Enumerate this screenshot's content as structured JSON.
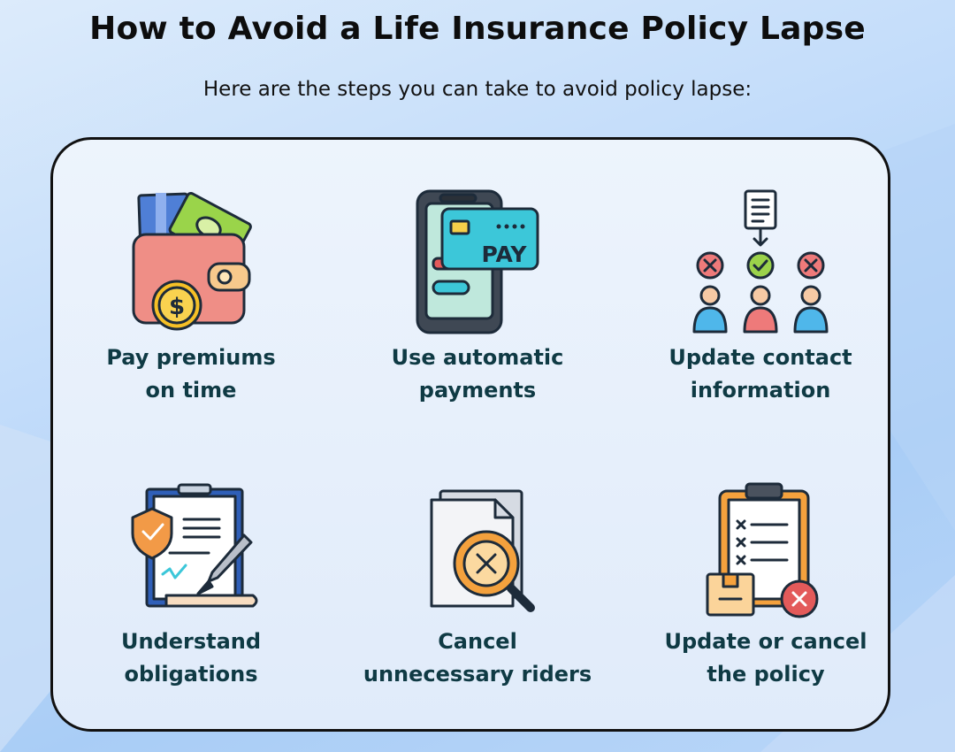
{
  "header": {
    "title": "How to Avoid a Life Insurance Policy Lapse",
    "subtitle": "Here are the steps you can take to avoid policy lapse:"
  },
  "steps": [
    {
      "line1": "Pay premiums",
      "line2": "on time",
      "icon": "wallet-icon"
    },
    {
      "line1": "Use automatic",
      "line2": "payments",
      "icon": "phone-pay-icon",
      "badge": "PAY"
    },
    {
      "line1": "Update contact",
      "line2": "information",
      "icon": "contacts-icon"
    },
    {
      "line1": "Understand",
      "line2": "obligations",
      "icon": "contract-icon"
    },
    {
      "line1": "Cancel",
      "line2": "unnecessary riders",
      "icon": "cancel-document-icon"
    },
    {
      "line1": "Update or cancel",
      "line2": "the policy",
      "icon": "clipboard-cancel-icon"
    }
  ],
  "colors": {
    "label": "#0f3a44",
    "outline": "#1d2b3a",
    "red": "#e35a5a",
    "green": "#8ccf3f",
    "teal": "#3cc7d9",
    "orange": "#f4a13d"
  }
}
